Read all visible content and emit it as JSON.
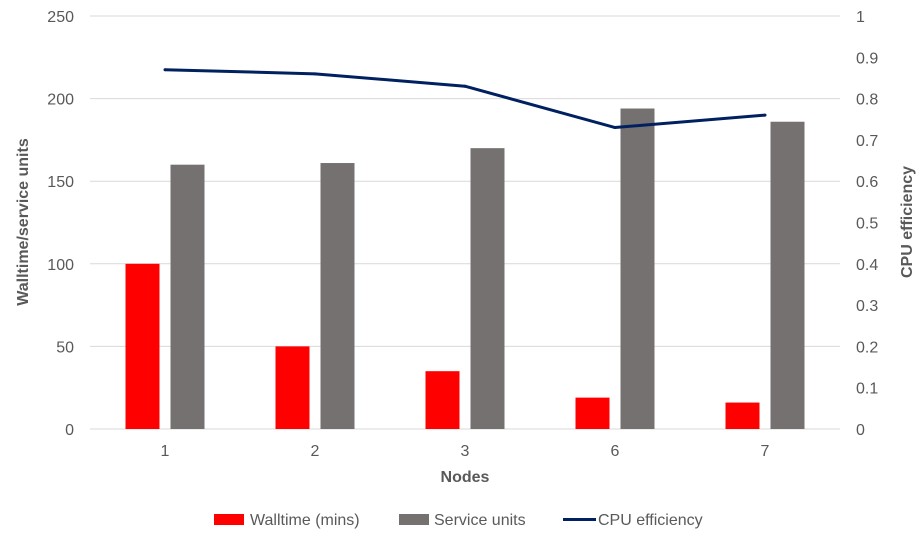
{
  "chart_data": {
    "type": "bar",
    "categories": [
      "1",
      "2",
      "3",
      "6",
      "7"
    ],
    "xlabel": "Nodes",
    "ylabel": "Walltime/service units",
    "y2label": "CPU efficiency",
    "ylim": [
      0,
      250
    ],
    "y2lim": [
      0,
      1
    ],
    "yticks": [
      "0",
      "50",
      "100",
      "150",
      "200",
      "250"
    ],
    "y2ticks": [
      "0",
      "0.1",
      "0.2",
      "0.3",
      "0.4",
      "0.5",
      "0.6",
      "0.7",
      "0.8",
      "0.9",
      "1"
    ],
    "grid": true,
    "legend_position": "bottom",
    "series": [
      {
        "name": "Walltime (mins)",
        "type": "bar",
        "axis": "left",
        "color": "#ff0000",
        "values": [
          100,
          50,
          35,
          19,
          16
        ]
      },
      {
        "name": "Service units",
        "type": "bar",
        "axis": "left",
        "color": "#767171",
        "values": [
          160,
          161,
          170,
          194,
          186
        ]
      },
      {
        "name": "CPU efficiency",
        "type": "line",
        "axis": "right",
        "color": "#002060",
        "values": [
          0.87,
          0.86,
          0.83,
          0.73,
          0.76
        ]
      }
    ]
  }
}
